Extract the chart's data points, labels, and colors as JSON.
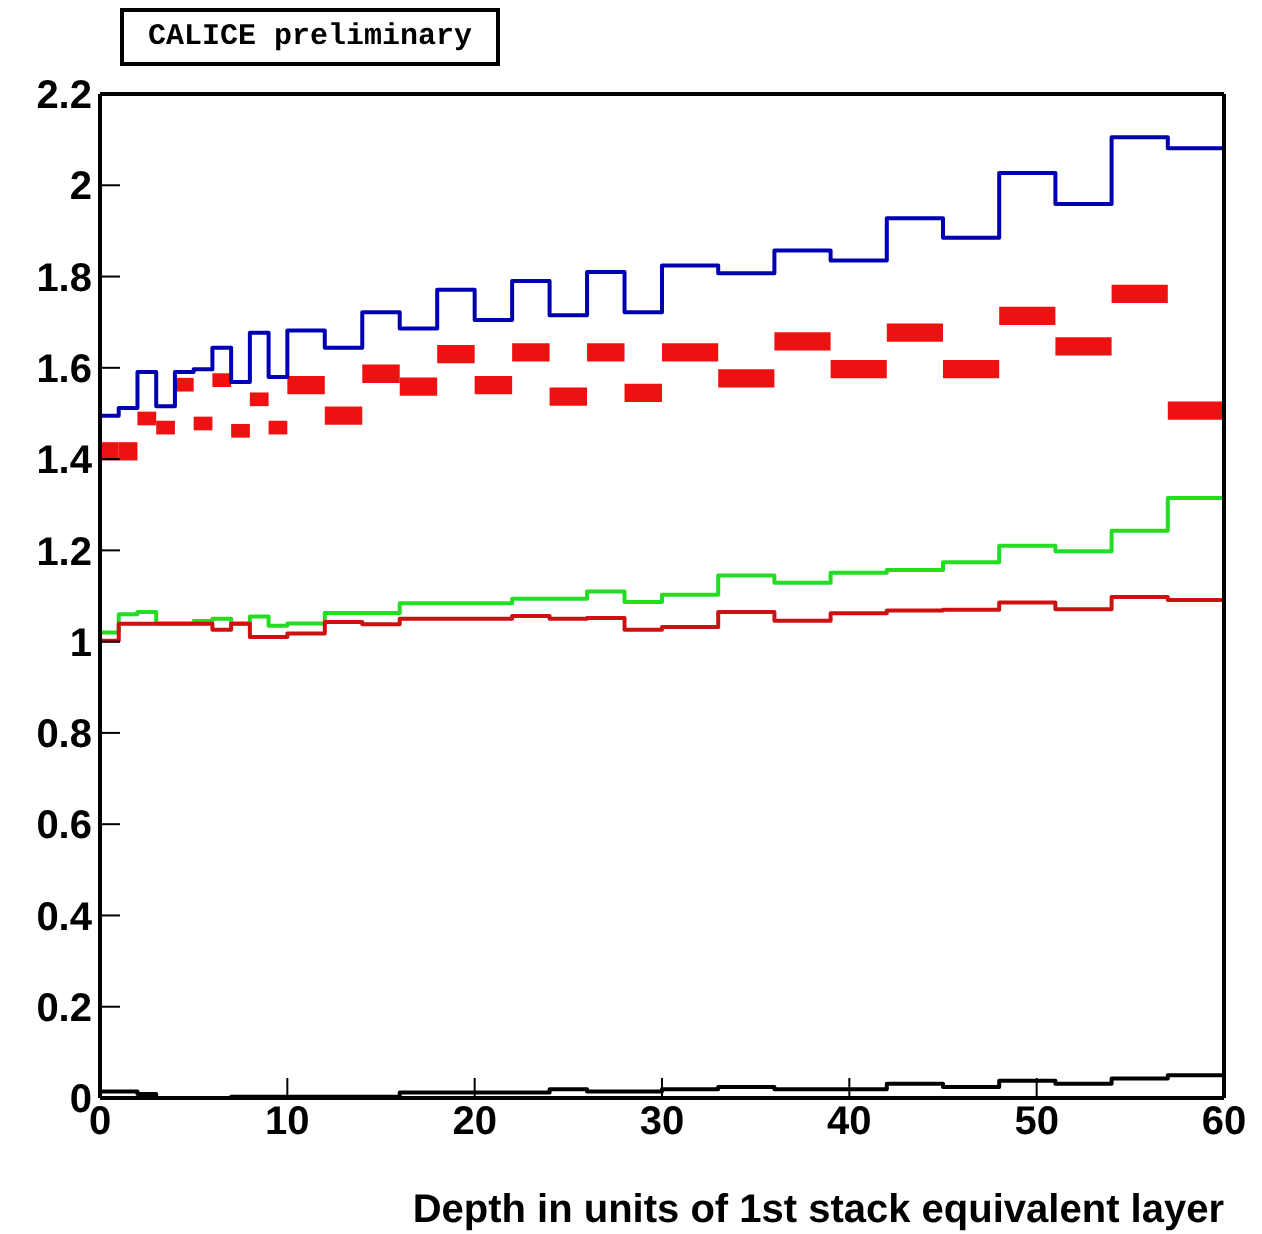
{
  "chart_data": {
    "type": "step",
    "xlabel": "Depth in units of 1st stack equivalent layer",
    "annotations": [
      "CALICE preliminary"
    ],
    "x": [
      0,
      1,
      2,
      3,
      4,
      5,
      6,
      7,
      8,
      9,
      10,
      12,
      14,
      16,
      18,
      20,
      22,
      24,
      26,
      28,
      30,
      33,
      36,
      39,
      42,
      45,
      48,
      51,
      54,
      57,
      60
    ],
    "series": [
      {
        "color": "#0000b0",
        "values": [
          1.495,
          1.512,
          1.591,
          1.516,
          1.591,
          1.597,
          1.644,
          1.569,
          1.677,
          1.58,
          1.682,
          1.644,
          1.722,
          1.686,
          1.771,
          1.705,
          1.79,
          1.715,
          1.81,
          1.722,
          1.824,
          1.807,
          1.857,
          1.835,
          1.928,
          1.885,
          2.027,
          1.959,
          2.105,
          2.081,
          2.081
        ]
      },
      {
        "type": "bar",
        "color": "#ee1111",
        "x": [
          0.5,
          1.5,
          2.5,
          3.5,
          4.5,
          5.5,
          6.5,
          7.5,
          8.5,
          9.5,
          11,
          13,
          15,
          17,
          19,
          21,
          23,
          25,
          27,
          29,
          31.5,
          34.5,
          37.5,
          40.5,
          43.5,
          46.5,
          49.5,
          52.5,
          55.5,
          58.5
        ],
        "base": [
          1.397,
          1.397,
          1.474,
          1.454,
          1.548,
          1.463,
          1.558,
          1.447,
          1.516,
          1.454,
          1.542,
          1.475,
          1.567,
          1.539,
          1.61,
          1.542,
          1.614,
          1.517,
          1.614,
          1.525,
          1.614,
          1.557,
          1.638,
          1.577,
          1.657,
          1.577,
          1.694,
          1.627,
          1.742,
          1.486
        ],
        "values": [
          0.04,
          0.04,
          0.03,
          0.03,
          0.03,
          0.03,
          0.03,
          0.03,
          0.03,
          0.03,
          0.04,
          0.04,
          0.04,
          0.04,
          0.04,
          0.04,
          0.04,
          0.04,
          0.04,
          0.04,
          0.04,
          0.04,
          0.04,
          0.04,
          0.04,
          0.04,
          0.04,
          0.04,
          0.04,
          0.04
        ]
      },
      {
        "color": "#22dd22",
        "values": [
          1.02,
          1.06,
          1.065,
          1.04,
          1.04,
          1.045,
          1.05,
          1.04,
          1.055,
          1.035,
          1.04,
          1.063,
          1.063,
          1.084,
          1.084,
          1.084,
          1.094,
          1.094,
          1.11,
          1.087,
          1.103,
          1.145,
          1.129,
          1.151,
          1.157,
          1.174,
          1.21,
          1.198,
          1.243,
          1.315,
          1.315
        ]
      },
      {
        "color": "#cc1111",
        "values": [
          1.002,
          1.039,
          1.039,
          1.039,
          1.039,
          1.039,
          1.026,
          1.039,
          1.01,
          1.01,
          1.018,
          1.043,
          1.038,
          1.05,
          1.05,
          1.05,
          1.056,
          1.05,
          1.052,
          1.026,
          1.032,
          1.065,
          1.046,
          1.062,
          1.068,
          1.07,
          1.086,
          1.071,
          1.098,
          1.091,
          1.091
        ]
      },
      {
        "color": "#000000",
        "values": [
          0.014,
          0.014,
          0.009,
          0,
          0,
          0,
          0,
          0.003,
          0.003,
          0.003,
          0.003,
          0.003,
          0.003,
          0.012,
          0.012,
          0.012,
          0.012,
          0.019,
          0.014,
          0.014,
          0.019,
          0.024,
          0.019,
          0.019,
          0.031,
          0.024,
          0.038,
          0.031,
          0.043,
          0.05,
          0.05
        ]
      }
    ],
    "xlim": [
      0,
      60
    ],
    "xticks": [
      0,
      10,
      20,
      30,
      40,
      50,
      60
    ],
    "ylim": [
      0,
      2.2
    ],
    "yticks": [
      0,
      0.2,
      0.4,
      0.6,
      0.8,
      1,
      1.2,
      1.4,
      1.6,
      1.8,
      2,
      2.2
    ],
    "grid": false,
    "legend": false
  }
}
